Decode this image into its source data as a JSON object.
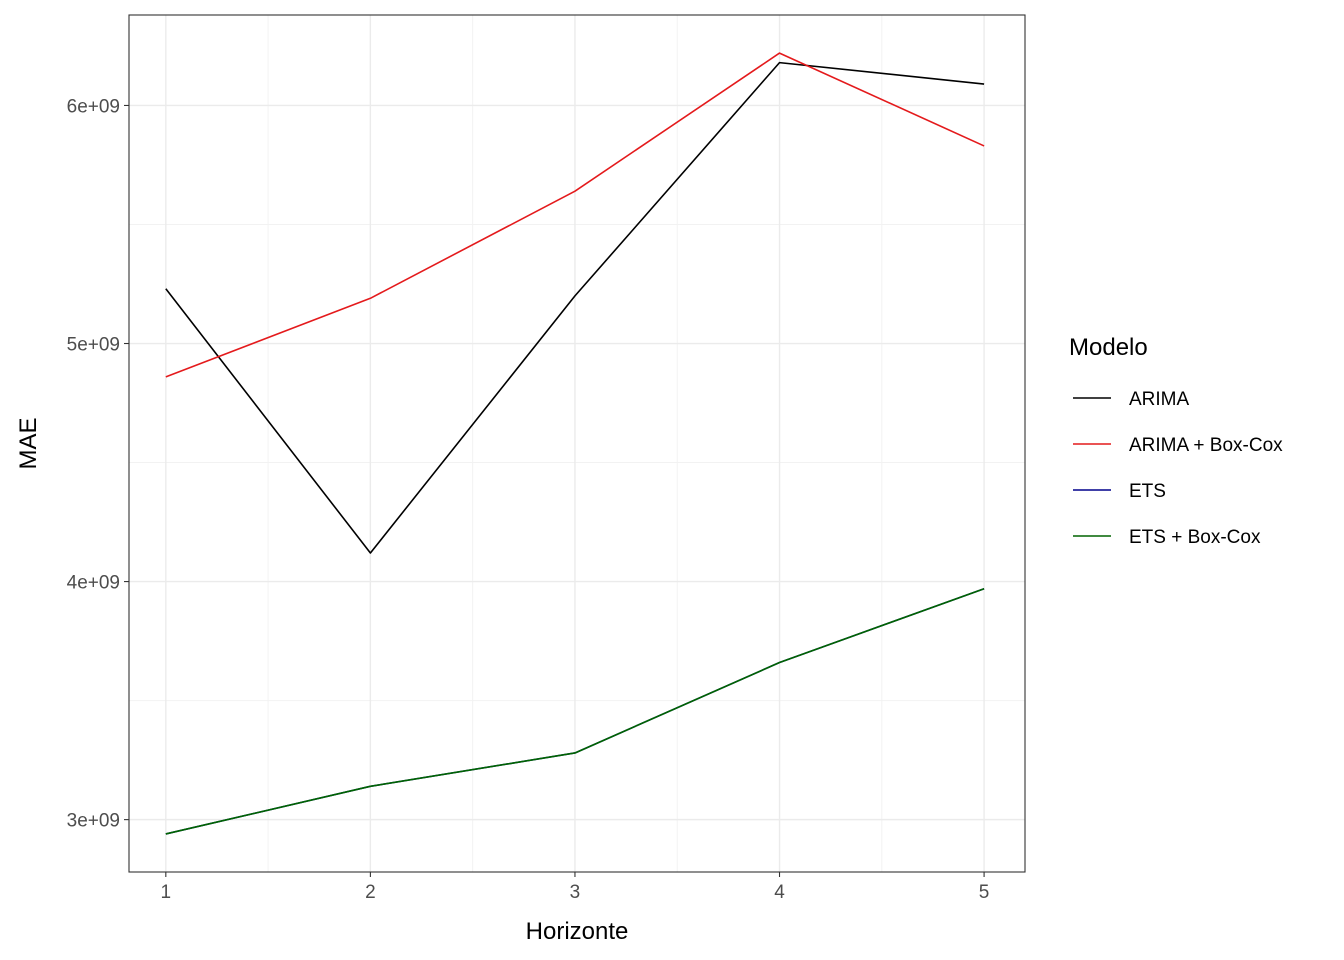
{
  "chart_data": {
    "type": "line",
    "title": "",
    "xlabel": "Horizonte",
    "ylabel": "MAE",
    "x": [
      1,
      2,
      3,
      4,
      5
    ],
    "x_ticks": [
      1,
      2,
      3,
      4,
      5
    ],
    "x_tick_labels": [
      "1",
      "2",
      "3",
      "4",
      "5"
    ],
    "y_ticks": [
      3000000000,
      4000000000,
      5000000000,
      6000000000
    ],
    "y_tick_labels": [
      "3e+09",
      "4e+09",
      "5e+09",
      "6e+09"
    ],
    "xlim": [
      0.82,
      5.2
    ],
    "ylim": [
      2780000000,
      6380000000
    ],
    "grid": true,
    "legend_position": "right",
    "legend_title": "Modelo",
    "series": [
      {
        "name": "ARIMA",
        "color": "#000000",
        "values": [
          5230000000,
          4120000000,
          5200000000,
          6180000000,
          6090000000
        ]
      },
      {
        "name": "ARIMA + Box-Cox",
        "color": "#e41a1c",
        "values": [
          4860000000,
          5190000000,
          5640000000,
          6220000000,
          5830000000
        ]
      },
      {
        "name": "ETS",
        "color": "#00008b",
        "values": [
          2940000000,
          3140000000,
          3280000000,
          3660000000,
          3970000000
        ]
      },
      {
        "name": "ETS + Box-Cox",
        "color": "#006400",
        "values": [
          2940000000,
          3140000000,
          3280000000,
          3660000000,
          3970000000
        ]
      }
    ]
  }
}
